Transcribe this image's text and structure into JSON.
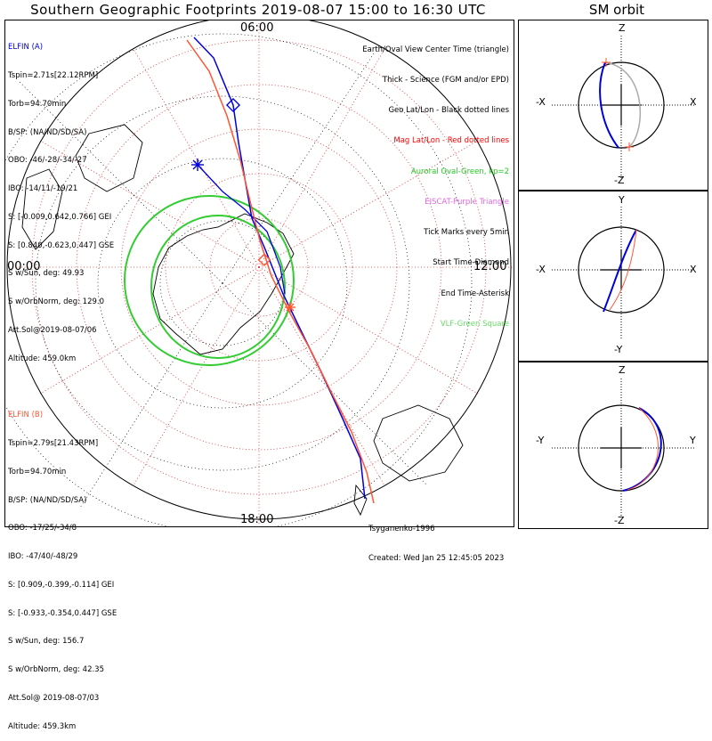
{
  "header": {
    "title": "Southern Geographic Footprints 2019-08-07 15:00 to 16:30 UTC",
    "sm_title": "SM orbit"
  },
  "mlt_labels": {
    "top": "06:00",
    "left": "00:00",
    "right": "12:00",
    "bottom": "18:00"
  },
  "elfin_a": {
    "name": "ELFIN (A)",
    "lines": [
      "Tspin=2.71s[22.12RPM]",
      "Torb=94.70min",
      "B/SP: (NA/ND/SD/SA)",
      "OBO: -46/-28/-34/-27",
      "IBO: -14/11/-19/21",
      "S: [-0.009,0.642,0.766] GEI",
      "S: [0.840,-0.623,0.447] GSE",
      "S w/Sun, deg: 49.93",
      "S w/OrbNorm, deg: 129.0",
      "Att.Sol@2019-08-07/06",
      "Altitude: 459.0km"
    ]
  },
  "elfin_b": {
    "name": "ELFIN (B)",
    "lines": [
      "Tspin=2.79s[21.43RPM]",
      "Torb=94.70min",
      "B/SP: (NA/ND/SD/SA)",
      "OBO: -17/25/-34/8",
      "IBO: -47/40/-48/29",
      "S: [0.909,-0.399,-0.114] GEI",
      "S: [-0.933,-0.354,0.447] GSE",
      "S w/Sun, deg: 156.7",
      "S w/OrbNorm, deg: 42.35",
      "Att.Sol@ 2019-08-07/03",
      "Altitude: 459.3km"
    ]
  },
  "legend": [
    {
      "text": "Earth/Oval View Center Time (triangle)",
      "color": "#000000"
    },
    {
      "text": "Thick - Science (FGM and/or EPD)",
      "color": "#000000"
    },
    {
      "text": "Geo Lat/Lon - Black dotted lines",
      "color": "#000000"
    },
    {
      "text": "Mag Lat/Lon - Red dotted lines",
      "color": "#ff0000"
    },
    {
      "text": "Auroral Oval-Green, kp=2",
      "color": "#22cc22"
    },
    {
      "text": "EISCAT-Purple Triangle",
      "color": "#dd66dd"
    },
    {
      "text": "Tick Marks every 5min",
      "color": "#000000"
    },
    {
      "text": "Start Time-Diamond",
      "color": "#000000"
    },
    {
      "text": "End Time-Asterisk",
      "color": "#000000"
    },
    {
      "text": "VLF-Green Square",
      "color": "#66dd66"
    }
  ],
  "credits": {
    "author": "Tsyganenko-1996",
    "created": "Created: Wed Jan 25 12:45:05 2023"
  },
  "sm_panels": [
    {
      "top": "Z",
      "bottom": "-Z",
      "left": "-X",
      "right": "X"
    },
    {
      "top": "Y",
      "bottom": "-Y",
      "left": "-X",
      "right": "X"
    },
    {
      "top": "Z",
      "bottom": "-Z",
      "left": "-Y",
      "right": "Y"
    }
  ],
  "colors": {
    "elfin_a": "#0000dd",
    "elfin_b": "#ff5533",
    "oval": "#33cc33",
    "mag_grid": "#dd3333",
    "geo_grid": "#000000"
  }
}
